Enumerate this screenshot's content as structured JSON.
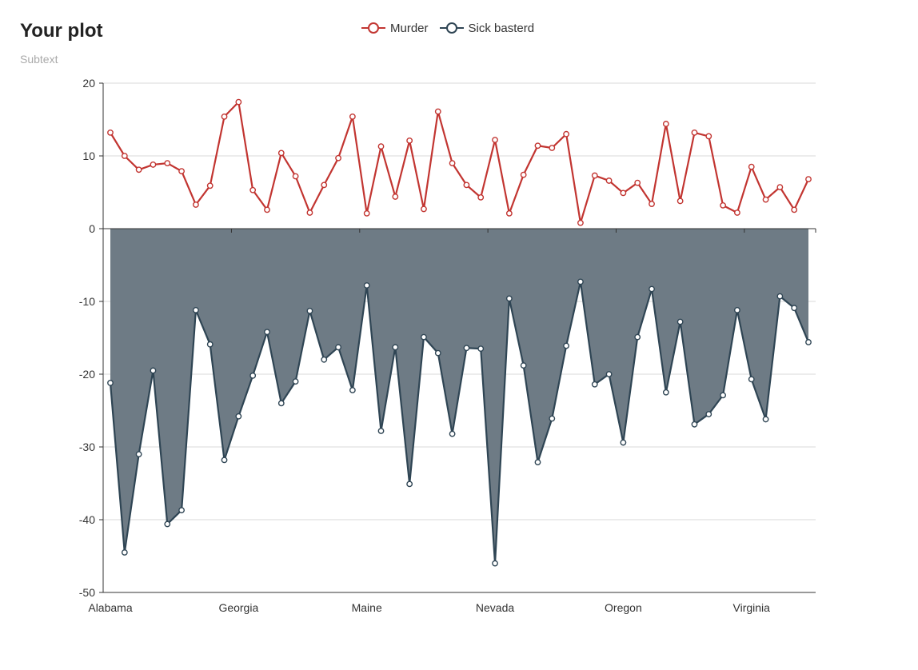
{
  "chart_data": {
    "type": "line",
    "title": "Your plot",
    "subtitle": "Subtext",
    "colors": {
      "murder": "#c23531",
      "sick": "#2f4554",
      "area": "#6e7b85"
    },
    "ylim": [
      -50,
      20
    ],
    "yticks": [
      20,
      10,
      0,
      -10,
      -20,
      -30,
      -40,
      -50
    ],
    "x_tick_labels": [
      "Alabama",
      "Georgia",
      "Maine",
      "Nevada",
      "Oregon",
      "Virginia"
    ],
    "x_tick_indices": [
      0,
      9,
      18,
      27,
      36,
      45
    ],
    "grid": true,
    "legend_position": "top-center",
    "series": [
      {
        "name": "Murder",
        "values": [
          13.2,
          10.0,
          8.1,
          8.8,
          9.0,
          7.9,
          3.3,
          5.9,
          15.4,
          17.4,
          5.3,
          2.6,
          10.4,
          7.2,
          2.2,
          6.0,
          9.7,
          15.4,
          2.1,
          11.3,
          4.4,
          12.1,
          2.7,
          16.1,
          9.0,
          6.0,
          4.3,
          12.2,
          2.1,
          7.4,
          11.4,
          11.1,
          13.0,
          0.8,
          7.3,
          6.6,
          4.9,
          6.3,
          3.4,
          14.4,
          3.8,
          13.2,
          12.7,
          3.2,
          2.2,
          8.5,
          4.0,
          5.7,
          2.6,
          6.8
        ]
      },
      {
        "name": "Sick basterd",
        "values": [
          -21.2,
          -44.5,
          -31.0,
          -19.5,
          -40.6,
          -38.7,
          -11.2,
          -15.9,
          -31.8,
          -25.8,
          -20.2,
          -14.2,
          -24.0,
          -21.0,
          -11.3,
          -18.0,
          -16.3,
          -22.2,
          -7.8,
          -27.8,
          -16.3,
          -35.1,
          -14.9,
          -17.1,
          -28.2,
          -16.4,
          -16.5,
          -46.0,
          -9.6,
          -18.8,
          -32.1,
          -26.1,
          -16.1,
          -7.3,
          -21.4,
          -20.0,
          -29.4,
          -14.9,
          -8.3,
          -22.5,
          -12.8,
          -26.9,
          -25.5,
          -22.9,
          -11.2,
          -20.7,
          -26.2,
          -9.3,
          -10.9,
          -15.6
        ]
      }
    ]
  }
}
